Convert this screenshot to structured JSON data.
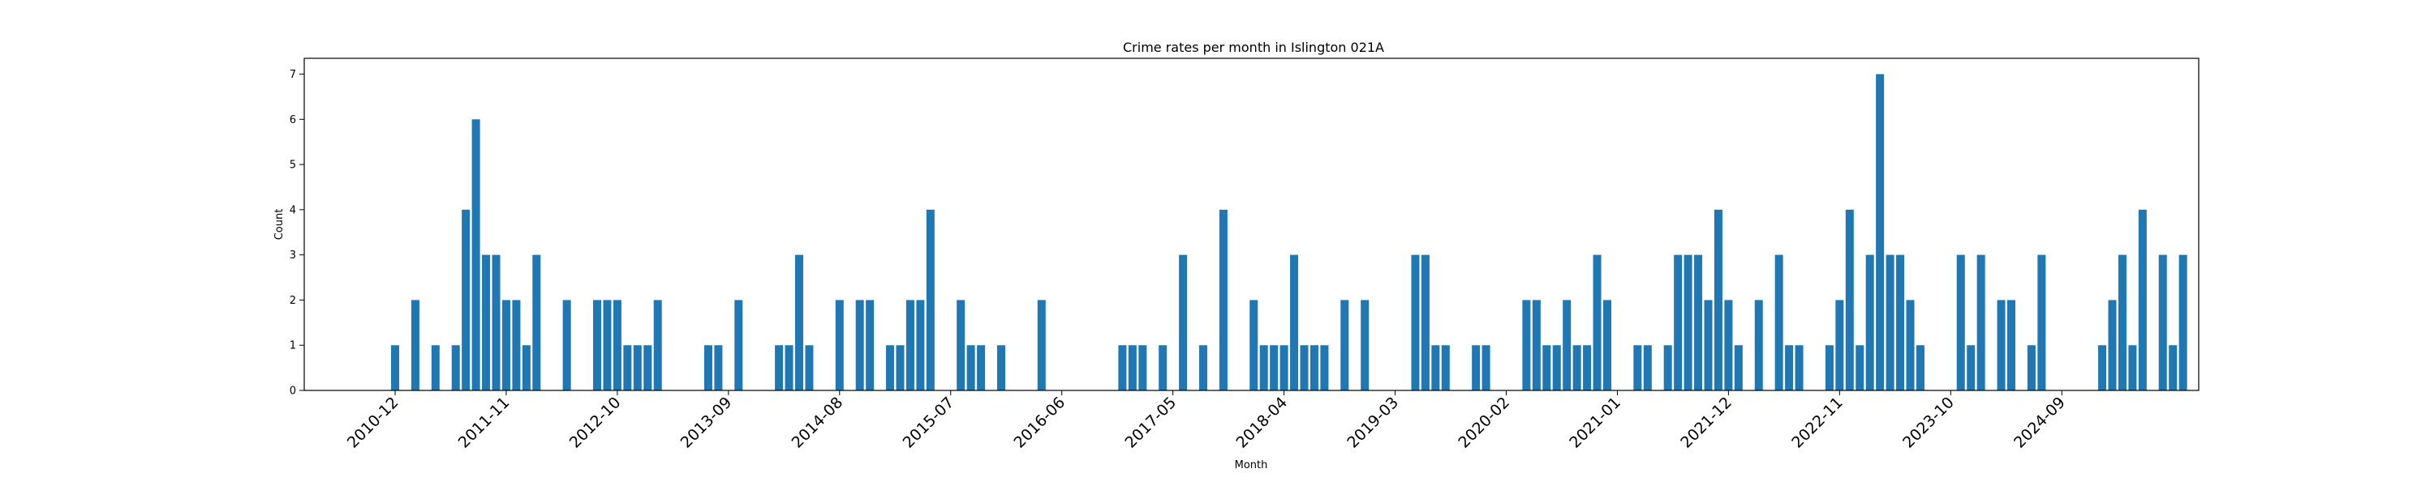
{
  "chart_data": {
    "type": "bar",
    "title": "Crime rates per month in Islington 021A",
    "xlabel": "Month",
    "ylabel": "Count",
    "ylim": [
      0,
      7.35
    ],
    "yticks": [
      0,
      1,
      2,
      3,
      4,
      5,
      6,
      7
    ],
    "grid": false,
    "legend": "none",
    "bar_color": "#1f77b4",
    "x_start": "2010-12",
    "xtick_labels": [
      "2010-12",
      "2011-11",
      "2012-10",
      "2013-09",
      "2014-08",
      "2015-07",
      "2016-06",
      "2017-05",
      "2018-04",
      "2019-03",
      "2020-02",
      "2021-01",
      "2021-12",
      "2022-11",
      "2023-10",
      "2024-09"
    ],
    "categories": [
      "2010-12",
      "2011-01",
      "2011-02",
      "2011-03",
      "2011-04",
      "2011-05",
      "2011-06",
      "2011-07",
      "2011-08",
      "2011-09",
      "2011-10",
      "2011-11",
      "2011-12",
      "2012-01",
      "2012-02",
      "2012-03",
      "2012-04",
      "2012-05",
      "2012-06",
      "2012-07",
      "2012-08",
      "2012-09",
      "2012-10",
      "2012-11",
      "2012-12",
      "2013-01",
      "2013-02",
      "2013-03",
      "2013-04",
      "2013-05",
      "2013-06",
      "2013-07",
      "2013-08",
      "2013-09",
      "2013-10",
      "2013-11",
      "2013-12",
      "2014-01",
      "2014-02",
      "2014-03",
      "2014-04",
      "2014-05",
      "2014-06",
      "2014-07",
      "2014-08",
      "2014-09",
      "2014-10",
      "2014-11",
      "2014-12",
      "2015-01",
      "2015-02",
      "2015-03",
      "2015-04",
      "2015-05",
      "2015-06",
      "2015-07",
      "2015-08",
      "2015-09",
      "2015-10",
      "2015-11",
      "2015-12",
      "2016-01",
      "2016-02",
      "2016-03",
      "2016-04",
      "2016-05",
      "2016-06",
      "2016-07",
      "2016-08",
      "2016-09",
      "2016-10",
      "2016-11",
      "2016-12",
      "2017-01",
      "2017-02",
      "2017-03",
      "2017-04",
      "2017-05",
      "2017-06",
      "2017-07",
      "2017-08",
      "2017-09",
      "2017-10",
      "2017-11",
      "2017-12",
      "2018-01",
      "2018-02",
      "2018-03",
      "2018-04",
      "2018-05",
      "2018-06",
      "2018-07",
      "2018-08",
      "2018-09",
      "2018-10",
      "2018-11",
      "2018-12",
      "2019-01",
      "2019-02",
      "2019-03",
      "2019-04",
      "2019-05",
      "2019-06",
      "2019-07",
      "2019-08",
      "2019-09",
      "2019-10",
      "2019-11",
      "2019-12",
      "2020-01",
      "2020-02",
      "2020-03",
      "2020-04",
      "2020-05",
      "2020-06",
      "2020-07",
      "2020-08",
      "2020-09",
      "2020-10",
      "2020-11",
      "2020-12",
      "2021-01",
      "2021-02",
      "2021-03",
      "2021-04",
      "2021-05",
      "2021-06",
      "2021-07",
      "2021-08",
      "2021-09",
      "2021-10",
      "2021-11",
      "2021-12",
      "2022-01",
      "2022-02",
      "2022-03",
      "2022-04",
      "2022-05",
      "2022-06",
      "2022-07",
      "2022-08",
      "2022-09",
      "2022-10",
      "2022-11",
      "2022-12",
      "2023-01",
      "2023-02",
      "2023-03",
      "2023-04",
      "2023-05",
      "2023-06",
      "2023-07",
      "2023-08",
      "2023-09",
      "2023-10",
      "2023-11",
      "2023-12",
      "2024-01",
      "2024-02",
      "2024-03",
      "2024-04",
      "2024-05",
      "2024-06",
      "2024-07",
      "2024-08",
      "2024-09",
      "2024-10",
      "2024-11",
      "2024-12",
      "2025-01",
      "2025-02",
      "2025-03",
      "2025-04",
      "2025-05",
      "2025-06",
      "2025-07",
      "2025-08",
      "2025-09"
    ],
    "values": [
      1,
      0,
      2,
      0,
      1,
      0,
      1,
      4,
      6,
      3,
      3,
      2,
      2,
      1,
      3,
      0,
      0,
      2,
      0,
      0,
      2,
      2,
      2,
      1,
      1,
      1,
      2,
      0,
      0,
      0,
      0,
      1,
      1,
      0,
      2,
      0,
      0,
      0,
      1,
      1,
      3,
      1,
      0,
      0,
      2,
      0,
      2,
      2,
      0,
      1,
      1,
      2,
      2,
      4,
      0,
      0,
      2,
      1,
      1,
      0,
      1,
      0,
      0,
      0,
      2,
      0,
      0,
      0,
      0,
      0,
      0,
      0,
      1,
      1,
      1,
      0,
      1,
      0,
      3,
      0,
      1,
      0,
      4,
      0,
      0,
      2,
      1,
      1,
      1,
      3,
      1,
      1,
      1,
      0,
      2,
      0,
      2,
      0,
      0,
      0,
      0,
      3,
      3,
      1,
      1,
      0,
      0,
      1,
      1,
      0,
      0,
      0,
      2,
      2,
      1,
      1,
      2,
      1,
      1,
      3,
      2,
      0,
      0,
      1,
      1,
      0,
      1,
      3,
      3,
      3,
      2,
      4,
      2,
      1,
      0,
      2,
      0,
      3,
      1,
      1,
      0,
      0,
      1,
      2,
      4,
      1,
      3,
      7,
      3,
      3,
      2,
      1,
      0,
      0,
      0,
      3,
      1,
      3,
      0,
      2,
      2,
      0,
      1,
      3,
      0,
      0,
      0,
      0,
      0,
      1,
      2,
      3,
      1,
      4,
      0,
      3,
      1,
      3
    ]
  }
}
